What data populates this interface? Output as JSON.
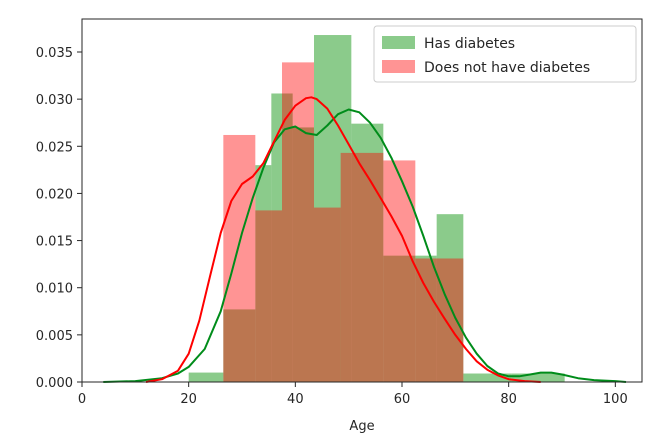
{
  "chart_data": {
    "type": "histogram-kde",
    "xlabel": "Age",
    "ylabel": "",
    "title": "",
    "xlim": [
      0,
      105
    ],
    "ylim": [
      0,
      0.0385
    ],
    "xticks": [
      0,
      20,
      40,
      60,
      80,
      100
    ],
    "yticks": [
      0.0,
      0.005,
      0.01,
      0.015,
      0.02,
      0.025,
      0.03,
      0.035
    ],
    "ytick_labels": [
      "0.000",
      "0.005",
      "0.010",
      "0.015",
      "0.020",
      "0.025",
      "0.030",
      "0.035"
    ],
    "legend_position": "top-right",
    "series": [
      {
        "name": "Has diabetes",
        "bar_color": "#2ca02c",
        "bar_opacity": 0.55,
        "kde_color": "#008c1a",
        "bins": [
          [
            20,
            26.5,
            0.001
          ],
          [
            26.5,
            32.5,
            0.0077
          ],
          [
            32.5,
            35.5,
            0.023
          ],
          [
            35.5,
            39.5,
            0.0306
          ],
          [
            39.5,
            43.5,
            0.027
          ],
          [
            43.5,
            50.5,
            0.0368
          ],
          [
            50.5,
            56.5,
            0.0274
          ],
          [
            56.5,
            62.5,
            0.0134
          ],
          [
            62.5,
            66.5,
            0.0134
          ],
          [
            66.5,
            71.5,
            0.0178
          ],
          [
            71.5,
            80.5,
            0.0009
          ],
          [
            80.5,
            90.5,
            0.0009
          ]
        ],
        "kde": [
          [
            4,
            0.0
          ],
          [
            10,
            0.0001
          ],
          [
            15,
            0.0004
          ],
          [
            18,
            0.0009
          ],
          [
            20,
            0.0016
          ],
          [
            23,
            0.0035
          ],
          [
            26,
            0.0075
          ],
          [
            28,
            0.0115
          ],
          [
            30,
            0.0158
          ],
          [
            32,
            0.0195
          ],
          [
            34,
            0.0227
          ],
          [
            36,
            0.0254
          ],
          [
            38,
            0.0268
          ],
          [
            40,
            0.0271
          ],
          [
            42,
            0.0264
          ],
          [
            44,
            0.0262
          ],
          [
            46,
            0.0272
          ],
          [
            48,
            0.0284
          ],
          [
            50,
            0.0289
          ],
          [
            52,
            0.0286
          ],
          [
            54,
            0.0275
          ],
          [
            56,
            0.0259
          ],
          [
            58,
            0.0238
          ],
          [
            60,
            0.0213
          ],
          [
            62,
            0.0186
          ],
          [
            64,
            0.0155
          ],
          [
            66,
            0.0122
          ],
          [
            68,
            0.0093
          ],
          [
            70,
            0.0068
          ],
          [
            72,
            0.0047
          ],
          [
            74,
            0.003
          ],
          [
            76,
            0.0017
          ],
          [
            78,
            0.0009
          ],
          [
            80,
            0.0006
          ],
          [
            82,
            0.0006
          ],
          [
            84,
            0.0008
          ],
          [
            86,
            0.001
          ],
          [
            88,
            0.001
          ],
          [
            90,
            0.0008
          ],
          [
            93,
            0.0004
          ],
          [
            96,
            0.0002
          ],
          [
            100,
            0.0001
          ],
          [
            102,
            0.0
          ]
        ]
      },
      {
        "name": "Does not have diabetes",
        "bar_color": "#ff0000",
        "bar_opacity": 0.42,
        "kde_color": "#ff0000",
        "bins": [
          [
            26.5,
            32.5,
            0.0262
          ],
          [
            32.5,
            37.5,
            0.0182
          ],
          [
            37.5,
            43.5,
            0.0339
          ],
          [
            43.5,
            48.5,
            0.0185
          ],
          [
            48.5,
            56.5,
            0.0243
          ],
          [
            56.5,
            62.5,
            0.0235
          ],
          [
            62.5,
            71.5,
            0.0131
          ]
        ],
        "kde": [
          [
            12,
            0.0
          ],
          [
            15,
            0.0003
          ],
          [
            18,
            0.0012
          ],
          [
            20,
            0.003
          ],
          [
            22,
            0.0065
          ],
          [
            24,
            0.0112
          ],
          [
            26,
            0.0158
          ],
          [
            28,
            0.0192
          ],
          [
            30,
            0.021
          ],
          [
            32,
            0.0218
          ],
          [
            34,
            0.0232
          ],
          [
            36,
            0.0255
          ],
          [
            38,
            0.0278
          ],
          [
            40,
            0.0293
          ],
          [
            42,
            0.0301
          ],
          [
            43,
            0.0302
          ],
          [
            44,
            0.03
          ],
          [
            46,
            0.029
          ],
          [
            48,
            0.0272
          ],
          [
            50,
            0.0252
          ],
          [
            52,
            0.0232
          ],
          [
            54,
            0.0214
          ],
          [
            56,
            0.0195
          ],
          [
            58,
            0.0176
          ],
          [
            60,
            0.0155
          ],
          [
            62,
            0.0128
          ],
          [
            64,
            0.0105
          ],
          [
            66,
            0.0085
          ],
          [
            68,
            0.0067
          ],
          [
            70,
            0.005
          ],
          [
            72,
            0.0035
          ],
          [
            74,
            0.0022
          ],
          [
            76,
            0.0013
          ],
          [
            78,
            0.0007
          ],
          [
            80,
            0.0003
          ],
          [
            83,
            0.0001
          ],
          [
            86,
            0.0
          ]
        ]
      }
    ]
  }
}
